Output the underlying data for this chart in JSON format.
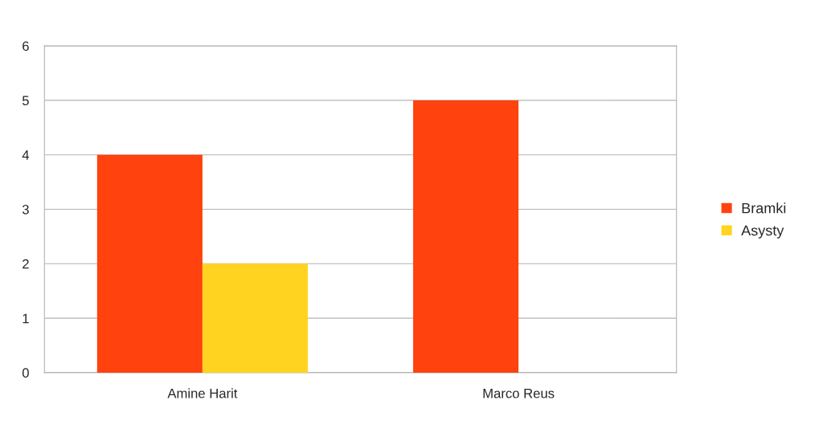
{
  "chart_data": {
    "type": "bar",
    "categories": [
      "Amine Harit",
      "Marco Reus"
    ],
    "series": [
      {
        "name": "Bramki",
        "color": "#ff420e",
        "values": [
          4,
          5
        ]
      },
      {
        "name": "Asysty",
        "color": "#ffd320",
        "values": [
          2,
          0
        ]
      }
    ],
    "ylim": [
      0,
      6
    ],
    "yticks": [
      0,
      1,
      2,
      3,
      4,
      5,
      6
    ],
    "grid": "y",
    "legend": "right"
  }
}
